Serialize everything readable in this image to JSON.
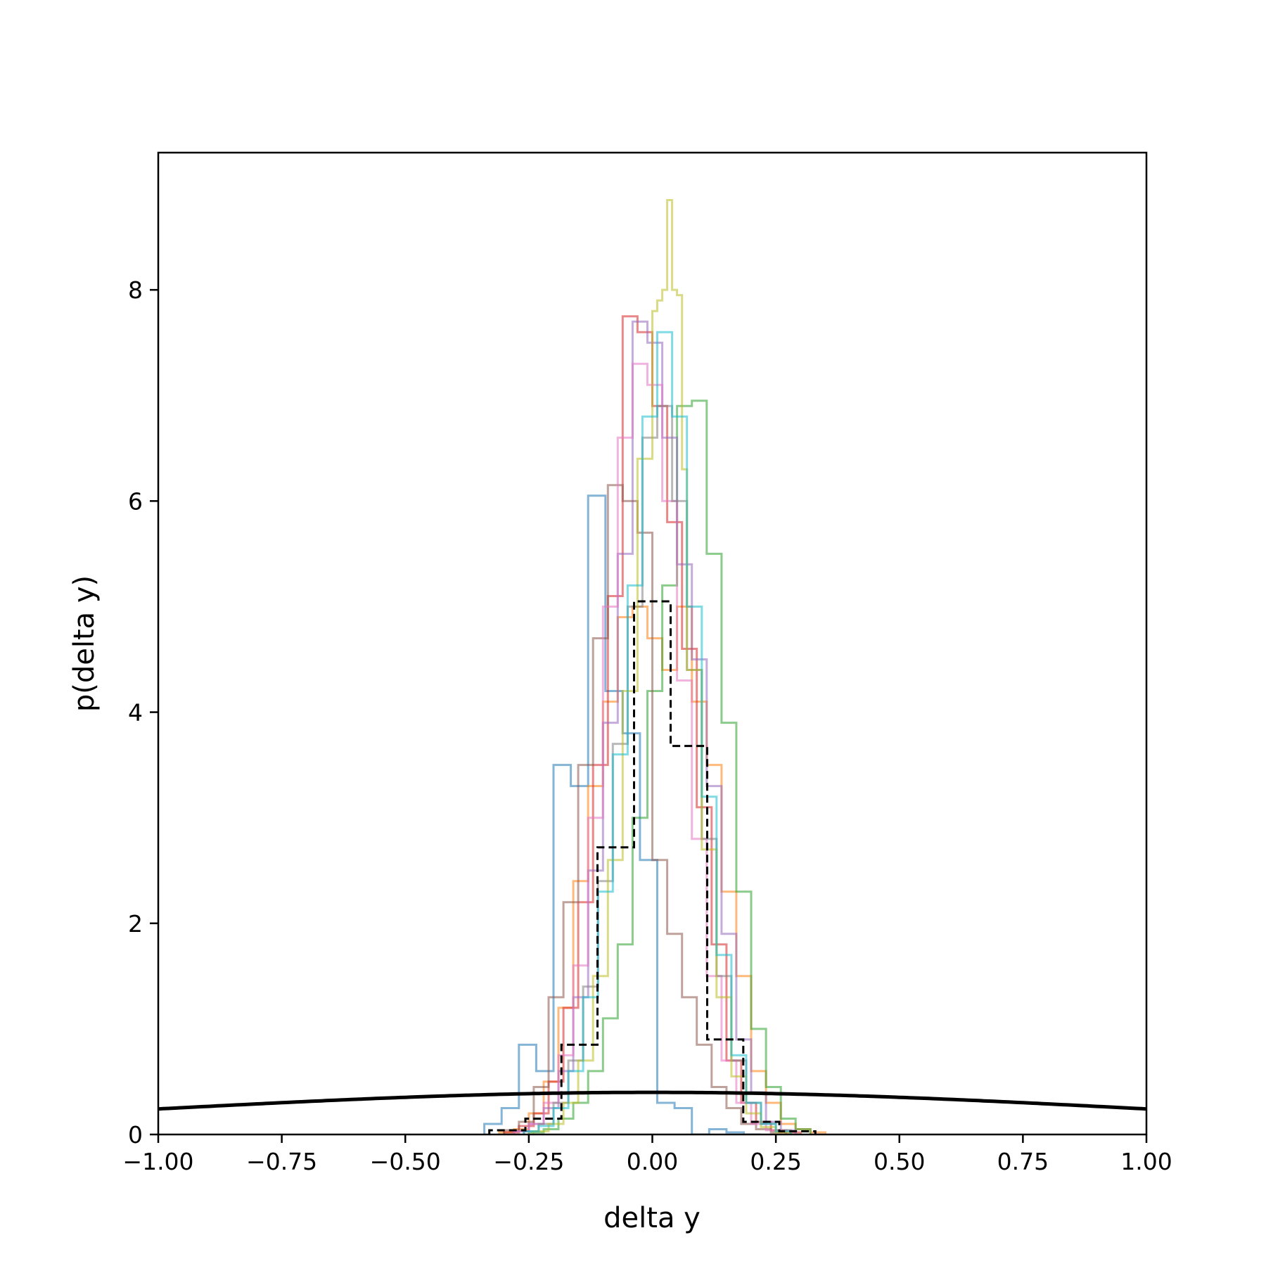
{
  "chart_data": {
    "type": "histogram",
    "title": "",
    "xlabel": "delta y",
    "ylabel": "p(delta y)",
    "xlim": [
      -1.0,
      1.0
    ],
    "ylim": [
      0,
      9.3
    ],
    "x_ticks": [
      "−1.00",
      "−0.75",
      "−0.50",
      "−0.25",
      "0.00",
      "0.25",
      "0.50",
      "0.75",
      "1.00"
    ],
    "x_tick_values": [
      -1.0,
      -0.75,
      -0.5,
      -0.25,
      0.0,
      0.25,
      0.5,
      0.75,
      1.0
    ],
    "y_ticks": [
      "0",
      "2",
      "4",
      "6",
      "8"
    ],
    "y_tick_values": [
      0,
      2,
      4,
      6,
      8
    ],
    "grid": false,
    "legend": "none",
    "reference_curve": {
      "style": "solid black",
      "description": "normal density",
      "mean": 0.0,
      "sd": 1.0
    },
    "dashed_histogram": {
      "style": "dashed black",
      "bin_edges": [
        -0.33,
        -0.257,
        -0.184,
        -0.111,
        -0.037,
        0.037,
        0.111,
        0.184,
        0.257,
        0.33
      ],
      "values": [
        0.04,
        0.15,
        0.85,
        2.72,
        5.05,
        3.68,
        0.9,
        0.12,
        0.03
      ]
    },
    "series": [
      {
        "color": "#1f77b4",
        "bin_edges": [
          -0.34,
          -0.305,
          -0.27,
          -0.235,
          -0.2,
          -0.165,
          -0.13,
          -0.095,
          -0.06,
          -0.025,
          0.01,
          0.045,
          0.08,
          0.115,
          0.15,
          0.185,
          0.22
        ],
        "values": [
          0.1,
          0.25,
          0.85,
          0.6,
          3.5,
          3.3,
          6.05,
          4.2,
          3.8,
          2.6,
          0.3,
          0.25,
          0.0,
          0.05,
          0.02,
          0.0
        ]
      },
      {
        "color": "#ff7f0e",
        "bin_edges": [
          -0.31,
          -0.28,
          -0.25,
          -0.22,
          -0.19,
          -0.16,
          -0.13,
          -0.1,
          -0.07,
          -0.04,
          -0.01,
          0.02,
          0.05,
          0.08,
          0.11,
          0.14,
          0.17,
          0.2,
          0.23,
          0.26,
          0.29,
          0.32,
          0.35
        ],
        "values": [
          0.02,
          0.05,
          0.2,
          0.5,
          1.2,
          2.4,
          3.3,
          4.1,
          4.9,
          5.0,
          4.7,
          4.4,
          5.0,
          4.1,
          3.5,
          2.3,
          1.5,
          0.6,
          0.3,
          0.1,
          0.05,
          0.02
        ]
      },
      {
        "color": "#2ca02c",
        "bin_edges": [
          -0.25,
          -0.22,
          -0.19,
          -0.16,
          -0.13,
          -0.1,
          -0.07,
          -0.04,
          -0.01,
          0.02,
          0.05,
          0.08,
          0.11,
          0.14,
          0.17,
          0.2,
          0.23,
          0.26,
          0.29,
          0.32
        ],
        "values": [
          0.02,
          0.05,
          0.15,
          0.3,
          0.6,
          1.1,
          1.8,
          3.0,
          4.2,
          5.2,
          6.9,
          6.95,
          5.5,
          3.9,
          2.3,
          1.0,
          0.45,
          0.15,
          0.05
        ]
      },
      {
        "color": "#d62728",
        "bin_edges": [
          -0.3,
          -0.27,
          -0.24,
          -0.21,
          -0.18,
          -0.15,
          -0.12,
          -0.09,
          -0.06,
          -0.03,
          0.0,
          0.03,
          0.06,
          0.09,
          0.12,
          0.15,
          0.18,
          0.21,
          0.24,
          0.27,
          0.3
        ],
        "values": [
          0.02,
          0.08,
          0.2,
          0.5,
          1.2,
          2.2,
          3.5,
          5.1,
          7.75,
          7.6,
          6.9,
          5.8,
          4.6,
          3.1,
          1.8,
          0.7,
          0.3,
          0.12,
          0.04,
          0.02
        ]
      },
      {
        "color": "#9467bd",
        "bin_edges": [
          -0.28,
          -0.25,
          -0.22,
          -0.19,
          -0.16,
          -0.13,
          -0.1,
          -0.07,
          -0.04,
          -0.01,
          0.02,
          0.05,
          0.08,
          0.11,
          0.14,
          0.17,
          0.2,
          0.23,
          0.26,
          0.29
        ],
        "values": [
          0.03,
          0.1,
          0.25,
          0.6,
          1.3,
          2.5,
          3.9,
          5.5,
          7.7,
          7.5,
          6.6,
          5.4,
          4.5,
          3.3,
          1.9,
          0.9,
          0.4,
          0.12,
          0.04
        ]
      },
      {
        "color": "#8c564b",
        "bin_edges": [
          -0.3,
          -0.27,
          -0.24,
          -0.21,
          -0.18,
          -0.15,
          -0.12,
          -0.09,
          -0.06,
          -0.03,
          0.0,
          0.03,
          0.06,
          0.09,
          0.12,
          0.15,
          0.18,
          0.21,
          0.24,
          0.27
        ],
        "values": [
          0.04,
          0.12,
          0.45,
          1.3,
          2.2,
          3.5,
          4.7,
          6.15,
          6.0,
          5.7,
          2.6,
          1.9,
          1.3,
          0.85,
          0.45,
          0.25,
          0.1,
          0.05,
          0.02
        ]
      },
      {
        "color": "#e377c2",
        "bin_edges": [
          -0.28,
          -0.25,
          -0.22,
          -0.19,
          -0.16,
          -0.13,
          -0.1,
          -0.07,
          -0.04,
          -0.01,
          0.02,
          0.05,
          0.08,
          0.11,
          0.14,
          0.17,
          0.2,
          0.23,
          0.26
        ],
        "values": [
          0.03,
          0.1,
          0.3,
          0.75,
          1.6,
          3.0,
          5.0,
          6.6,
          7.3,
          7.1,
          6.0,
          4.3,
          2.8,
          1.5,
          0.7,
          0.3,
          0.1,
          0.04
        ]
      },
      {
        "color": "#7f7f7f",
        "bin_edges": [
          -0.26,
          -0.23,
          -0.2,
          -0.17,
          -0.14,
          -0.11,
          -0.08,
          -0.05,
          -0.02,
          0.01,
          0.04,
          0.07,
          0.1,
          0.13,
          0.16,
          0.19,
          0.22,
          0.25,
          0.28
        ],
        "values": [
          0.03,
          0.1,
          0.3,
          0.7,
          1.4,
          2.4,
          3.7,
          5.0,
          6.6,
          6.9,
          6.0,
          4.4,
          2.8,
          1.5,
          0.7,
          0.3,
          0.1,
          0.04
        ]
      },
      {
        "color": "#bcbd22",
        "bin_edges": [
          -0.24,
          -0.21,
          -0.18,
          -0.15,
          -0.12,
          -0.09,
          -0.06,
          -0.03,
          0.0,
          0.01,
          0.02,
          0.03,
          0.04,
          0.05,
          0.06,
          0.07,
          0.1,
          0.13,
          0.16,
          0.19,
          0.22,
          0.25,
          0.28
        ],
        "values": [
          0.03,
          0.1,
          0.3,
          0.7,
          1.5,
          2.6,
          4.2,
          6.4,
          7.8,
          7.9,
          8.0,
          8.85,
          8.0,
          7.95,
          6.3,
          4.4,
          2.7,
          1.3,
          0.55,
          0.2,
          0.07,
          0.02
        ]
      },
      {
        "color": "#17becf",
        "bin_edges": [
          -0.26,
          -0.23,
          -0.2,
          -0.17,
          -0.14,
          -0.11,
          -0.08,
          -0.05,
          -0.02,
          0.01,
          0.04,
          0.07,
          0.1,
          0.13,
          0.16,
          0.19,
          0.22,
          0.25,
          0.28
        ],
        "values": [
          0.03,
          0.08,
          0.25,
          0.6,
          1.3,
          2.3,
          3.6,
          5.2,
          6.8,
          7.6,
          6.8,
          5.0,
          3.2,
          1.7,
          0.75,
          0.3,
          0.1,
          0.03
        ]
      }
    ]
  }
}
